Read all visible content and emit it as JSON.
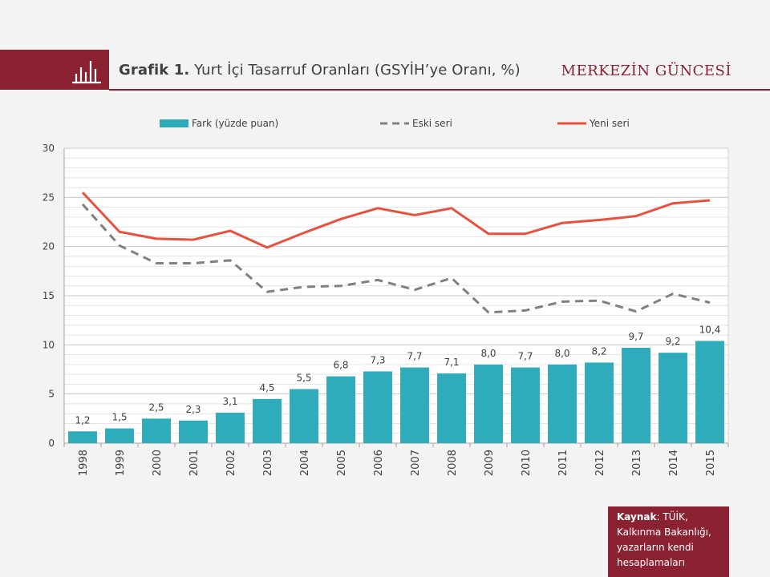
{
  "header": {
    "grafik_label": "Grafik 1.",
    "title": "Yurt İçi Tasarruf Oranları (GSYİH’ye Oranı, %)",
    "brand": "MERKEZİN GÜNCESİ",
    "icon": "bar-chart-icon"
  },
  "colors": {
    "brand": "#8b2232",
    "bar": "#2eacbb",
    "old_series": "#808080",
    "new_series": "#e8513e"
  },
  "source": {
    "label": "Kaynak",
    "text": ": TÜİK, Kalkınma Bakanlığı, yazarların kendi hesaplamaları"
  },
  "chart_data": {
    "type": "bar",
    "title": "",
    "xlabel": "",
    "ylabel": "",
    "ylim": [
      0,
      30
    ],
    "yticks": [
      0,
      5,
      10,
      15,
      20,
      25,
      30
    ],
    "grid": true,
    "legend_position": "top",
    "categories": [
      "1998",
      "1999",
      "2000",
      "2001",
      "2002",
      "2003",
      "2004",
      "2005",
      "2006",
      "2007",
      "2008",
      "2009",
      "2010",
      "2011",
      "2012",
      "2013",
      "2014",
      "2015"
    ],
    "series": [
      {
        "name": "Fark (yüzde puan)",
        "kind": "bar",
        "values": [
          1.2,
          1.5,
          2.5,
          2.3,
          3.1,
          4.5,
          5.5,
          6.8,
          7.3,
          7.7,
          7.1,
          8.0,
          7.7,
          8.0,
          8.2,
          9.7,
          9.2,
          10.4
        ],
        "labels": [
          "1,2",
          "1,5",
          "2,5",
          "2,3",
          "3,1",
          "4,5",
          "5,5",
          "6,8",
          "7,3",
          "7,7",
          "7,1",
          "8,0",
          "7,7",
          "8,0",
          "8,2",
          "9,7",
          "9,2",
          "10,4"
        ]
      },
      {
        "name": "Eski seri",
        "kind": "dashed-line",
        "values": [
          24.3,
          20.1,
          18.3,
          18.3,
          18.6,
          15.4,
          15.9,
          16.0,
          16.6,
          15.6,
          16.8,
          13.3,
          13.5,
          14.4,
          14.5,
          13.4,
          15.2,
          14.3
        ]
      },
      {
        "name": "Yeni seri",
        "kind": "line",
        "values": [
          25.5,
          21.5,
          20.8,
          20.7,
          21.6,
          19.9,
          21.4,
          22.8,
          23.9,
          23.2,
          23.9,
          21.3,
          21.3,
          22.4,
          22.7,
          23.1,
          24.4,
          24.7
        ]
      }
    ]
  }
}
